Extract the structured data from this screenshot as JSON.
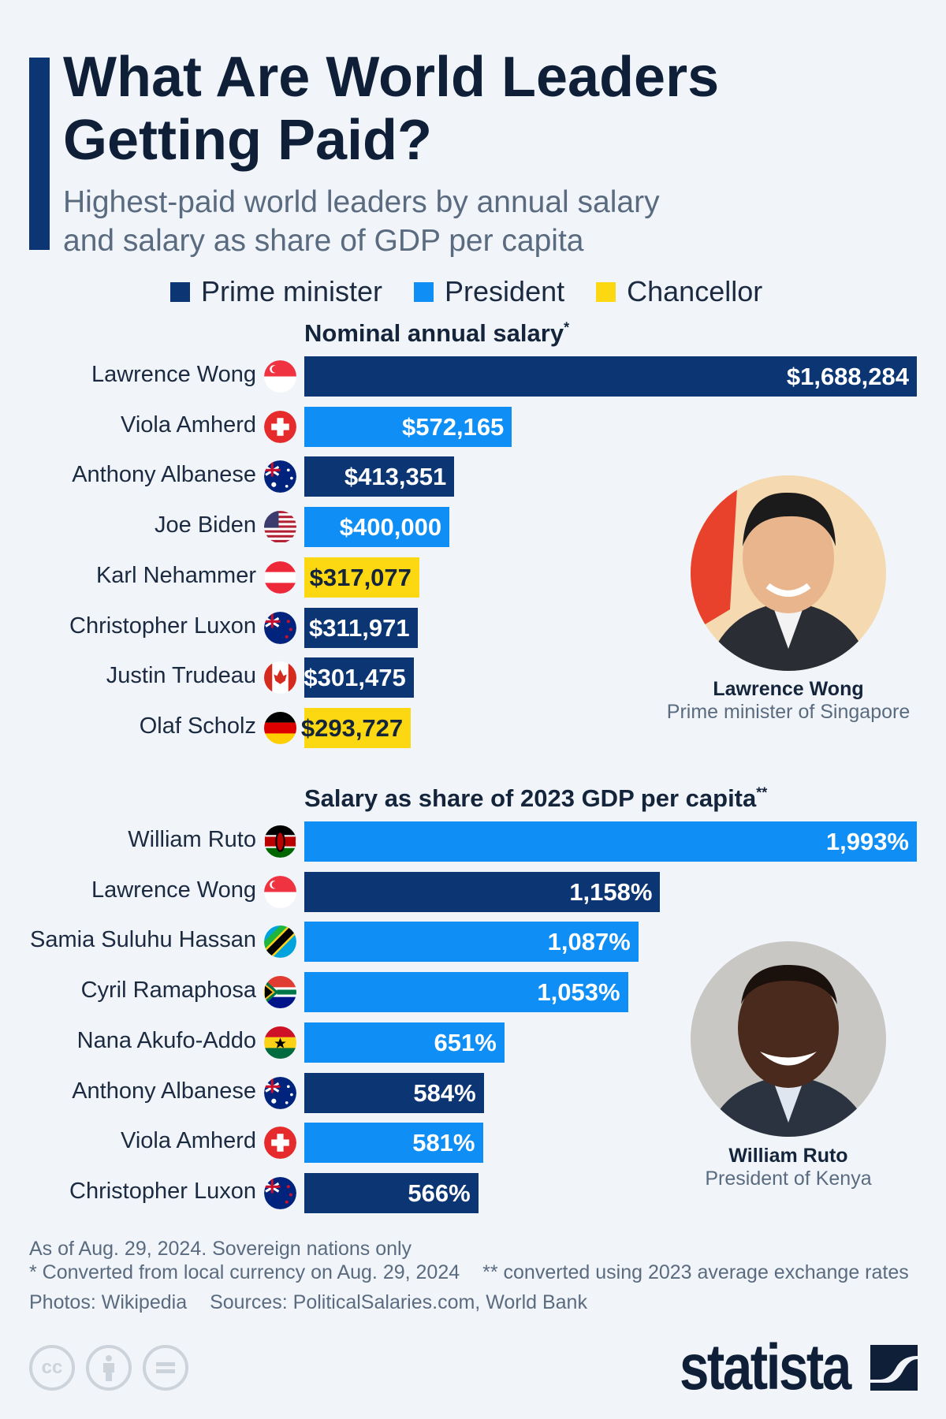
{
  "header": {
    "title_line1": "What Are World Leaders",
    "title_line2": "Getting Paid?",
    "subtitle_line1": "Highest-paid world leaders by annual salary",
    "subtitle_line2": "and salary as share of GDP per capita"
  },
  "legend": [
    {
      "label": "Prime minister",
      "role": "pm",
      "color": "#0c3574"
    },
    {
      "label": "President",
      "role": "president",
      "color": "#0f8ef5"
    },
    {
      "label": "Chancellor",
      "role": "chancellor",
      "color": "#fcd812"
    }
  ],
  "chart_data": [
    {
      "type": "bar",
      "orientation": "horizontal",
      "title": "Nominal annual salary",
      "title_mark": "*",
      "unit": "USD",
      "rows": [
        {
          "name": "Lawrence Wong",
          "flag": "sg",
          "role": "pm",
          "value": 1688284,
          "label": "$1,688,284"
        },
        {
          "name": "Viola Amherd",
          "flag": "ch",
          "role": "president",
          "value": 572165,
          "label": "$572,165"
        },
        {
          "name": "Anthony Albanese",
          "flag": "au",
          "role": "pm",
          "value": 413351,
          "label": "$413,351"
        },
        {
          "name": "Joe Biden",
          "flag": "us",
          "role": "president",
          "value": 400000,
          "label": "$400,000"
        },
        {
          "name": "Karl Nehammer",
          "flag": "at",
          "role": "chancellor",
          "value": 317077,
          "label": "$317,077"
        },
        {
          "name": "Christopher Luxon",
          "flag": "nz",
          "role": "pm",
          "value": 311971,
          "label": "$311,971"
        },
        {
          "name": "Justin Trudeau",
          "flag": "ca",
          "role": "pm",
          "value": 301475,
          "label": "$301,475"
        },
        {
          "name": "Olaf Scholz",
          "flag": "de",
          "role": "chancellor",
          "value": 293727,
          "label": "$293,727"
        }
      ],
      "xlim": [
        0,
        1688284
      ]
    },
    {
      "type": "bar",
      "orientation": "horizontal",
      "title": "Salary as share of 2023 GDP per capita",
      "title_mark": "**",
      "unit": "%",
      "rows": [
        {
          "name": "William Ruto",
          "flag": "ke",
          "role": "president",
          "value": 1993,
          "label": "1,993%"
        },
        {
          "name": "Lawrence Wong",
          "flag": "sg",
          "role": "pm",
          "value": 1158,
          "label": "1,158%"
        },
        {
          "name": "Samia Suluhu Hassan",
          "flag": "tz",
          "role": "president",
          "value": 1087,
          "label": "1,087%"
        },
        {
          "name": "Cyril Ramaphosa",
          "flag": "za",
          "role": "president",
          "value": 1053,
          "label": "1,053%"
        },
        {
          "name": "Nana Akufo-Addo",
          "flag": "gh",
          "role": "president",
          "value": 651,
          "label": "651%"
        },
        {
          "name": "Anthony Albanese",
          "flag": "au",
          "role": "pm",
          "value": 584,
          "label": "584%"
        },
        {
          "name": "Viola Amherd",
          "flag": "ch",
          "role": "president",
          "value": 581,
          "label": "581%"
        },
        {
          "name": "Christopher Luxon",
          "flag": "nz",
          "role": "pm",
          "value": 566,
          "label": "566%"
        }
      ],
      "xlim": [
        0,
        1993
      ]
    }
  ],
  "photos": [
    {
      "name": "Lawrence Wong",
      "role": "Prime minister of Singapore"
    },
    {
      "name": "William Ruto",
      "role": "President of Kenya"
    }
  ],
  "footer": {
    "note": "As of Aug. 29, 2024. Sovereign nations only",
    "footnote1": "* Converted from local currency on Aug. 29, 2024",
    "footnote2": "** converted using 2023 average exchange rates",
    "photos_credit": "Photos: Wikipedia",
    "sources": "Sources: PoliticalSalaries.com, World Bank",
    "cc_icons": [
      "cc-icon",
      "attribution-icon",
      "no-derivatives-icon"
    ],
    "logo": "statista"
  }
}
